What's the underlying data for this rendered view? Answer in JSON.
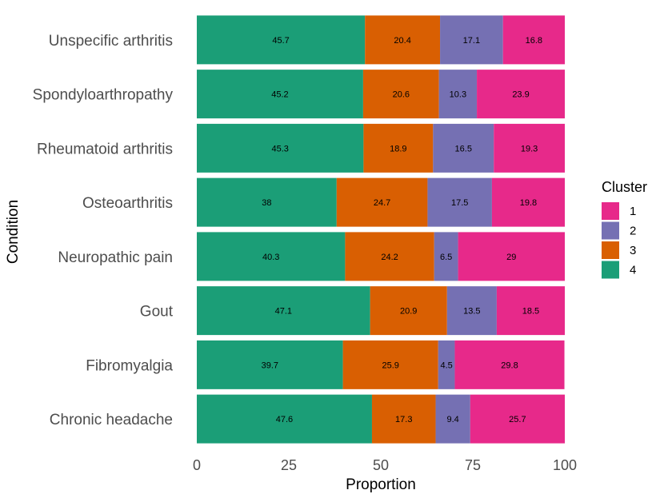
{
  "chart_data": {
    "type": "bar",
    "orientation": "horizontal",
    "stacked": true,
    "xlabel": "Proportion",
    "ylabel": "Condition",
    "xlim": [
      0,
      100
    ],
    "xticks": [
      0,
      25,
      50,
      75,
      100
    ],
    "grid": false,
    "legend_position": "right",
    "legend_title": "Cluster",
    "legend_order": [
      "1",
      "2",
      "3",
      "4"
    ],
    "categories": [
      "Unspecific arthritis",
      "Spondyloarthropathy",
      "Rheumatoid arthritis",
      "Osteoarthritis",
      "Neuropathic pain",
      "Gout",
      "Fibromyalgia",
      "Chronic headache"
    ],
    "stack_order": [
      "4",
      "3",
      "2",
      "1"
    ],
    "series": [
      {
        "name": "4",
        "color": "#1b9e77",
        "values": [
          45.7,
          45.2,
          45.3,
          38,
          40.3,
          47.1,
          39.7,
          47.6
        ],
        "labels": [
          "45.7",
          "45.2",
          "45.3",
          "38",
          "40.3",
          "47.1",
          "39.7",
          "47.6"
        ]
      },
      {
        "name": "3",
        "color": "#d95f02",
        "values": [
          20.4,
          20.6,
          18.9,
          24.7,
          24.2,
          20.9,
          25.9,
          17.3
        ],
        "labels": [
          "20.4",
          "20.6",
          "18.9",
          "24.7",
          "24.2",
          "20.9",
          "25.9",
          "17.3"
        ]
      },
      {
        "name": "2",
        "color": "#7570b3",
        "values": [
          17.1,
          10.3,
          16.5,
          17.5,
          6.5,
          13.5,
          4.5,
          9.4
        ],
        "labels": [
          "17.1",
          "10.3",
          "16.5",
          "17.5",
          "6.5",
          "13.5",
          "4.5",
          "9.4"
        ]
      },
      {
        "name": "1",
        "color": "#e7298a",
        "values": [
          16.8,
          23.9,
          19.3,
          19.8,
          29,
          18.5,
          29.8,
          25.7
        ],
        "labels": [
          "16.8",
          "23.9",
          "19.3",
          "19.8",
          "29",
          "18.5",
          "29.8",
          "25.7"
        ]
      }
    ]
  }
}
